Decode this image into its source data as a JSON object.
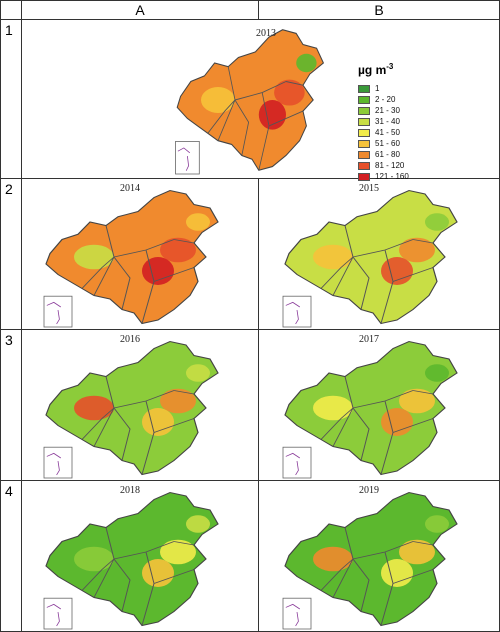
{
  "columns": [
    "A",
    "B"
  ],
  "rows": [
    "1",
    "2",
    "3",
    "4"
  ],
  "legend": {
    "unit_base": "µg m",
    "unit_exp": "-3",
    "items": [
      {
        "label": "1",
        "color": "#3a9a3a"
      },
      {
        "label": "2 - 20",
        "color": "#5cb82e"
      },
      {
        "label": "21 - 30",
        "color": "#8ccc3a"
      },
      {
        "label": "31 - 40",
        "color": "#c8de45"
      },
      {
        "label": "41 - 50",
        "color": "#f2ec4a"
      },
      {
        "label": "51 - 60",
        "color": "#f6c23a"
      },
      {
        "label": "61 - 80",
        "color": "#f08a2e"
      },
      {
        "label": "81 - 120",
        "color": "#e6502a"
      },
      {
        "label": "121 - 160",
        "color": "#d21e22"
      }
    ]
  },
  "maps": [
    {
      "year": "2013",
      "base": "#f08a2e",
      "blobs": [
        "#e6502a",
        "#d21e22",
        "#f6c23a",
        "#5cb82e"
      ]
    },
    {
      "year": "2014",
      "base": "#f08a2e",
      "blobs": [
        "#e6502a",
        "#d21e22",
        "#c8de45",
        "#f6c23a"
      ]
    },
    {
      "year": "2015",
      "base": "#c8de45",
      "blobs": [
        "#f08a2e",
        "#e6502a",
        "#f6c23a",
        "#8ccc3a"
      ]
    },
    {
      "year": "2016",
      "base": "#8ccc3a",
      "blobs": [
        "#f08a2e",
        "#f6c23a",
        "#e6502a",
        "#c8de45"
      ]
    },
    {
      "year": "2017",
      "base": "#8ccc3a",
      "blobs": [
        "#f6c23a",
        "#f08a2e",
        "#f2ec4a",
        "#5cb82e"
      ]
    },
    {
      "year": "2018",
      "base": "#5cb82e",
      "blobs": [
        "#f2ec4a",
        "#f6c23a",
        "#8ccc3a",
        "#c8de45"
      ]
    },
    {
      "year": "2019",
      "base": "#5cb82e",
      "blobs": [
        "#f6c23a",
        "#f2ec4a",
        "#f08a2e",
        "#8ccc3a"
      ]
    }
  ]
}
